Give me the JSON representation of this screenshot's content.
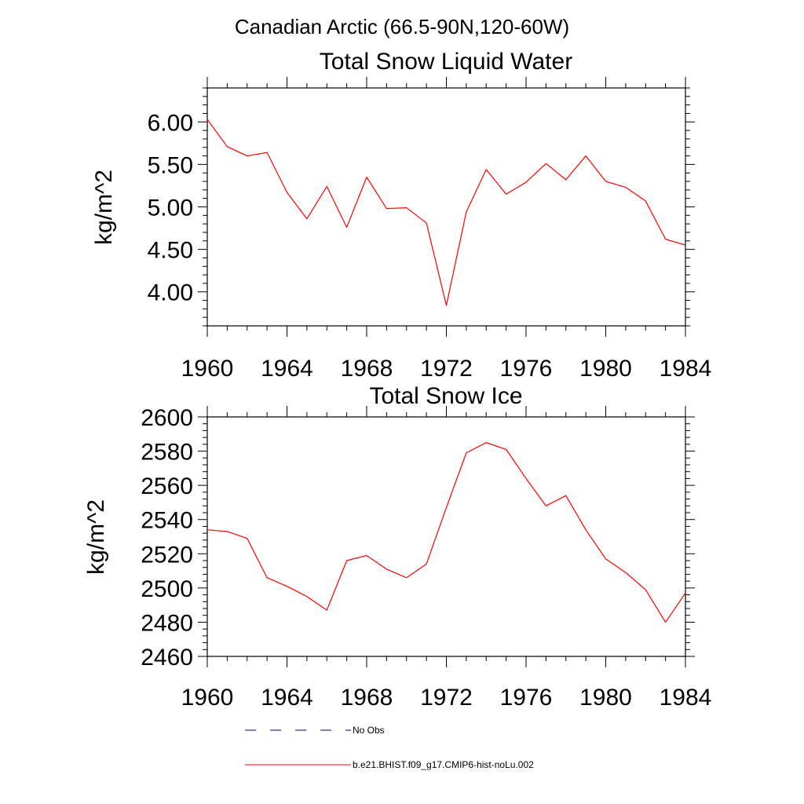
{
  "page_title": "Canadian Arctic (66.5-90N,120-60W)",
  "legend": [
    {
      "label": "No Obs",
      "color": "#000080",
      "style": "dashed"
    },
    {
      "label": "b.e21.BHIST.f09_g17.CMIP6-hist-noLu.002",
      "color": "#ff0000",
      "style": "solid"
    }
  ],
  "chart_data": [
    {
      "type": "line",
      "title": "Total Snow Liquid Water",
      "xlabel": "",
      "ylabel": "kg/m^2",
      "xlim": [
        1960,
        1984
      ],
      "ylim": [
        3.6,
        6.4
      ],
      "xticks": [
        "1960",
        "1964",
        "1968",
        "1972",
        "1976",
        "1980",
        "1984"
      ],
      "yticks": [
        "4.00",
        "4.50",
        "5.00",
        "5.50",
        "6.00"
      ],
      "x": [
        1960,
        1961,
        1962,
        1963,
        1964,
        1965,
        1966,
        1967,
        1968,
        1969,
        1970,
        1971,
        1972,
        1973,
        1974,
        1975,
        1976,
        1977,
        1978,
        1979,
        1980,
        1981,
        1982,
        1983,
        1984
      ],
      "series": [
        {
          "name": "b.e21.BHIST.f09_g17.CMIP6-hist-noLu.002",
          "color": "#ff0000",
          "values": [
            6.03,
            5.71,
            5.6,
            5.64,
            5.17,
            4.86,
            5.24,
            4.76,
            5.35,
            4.98,
            4.99,
            4.81,
            3.84,
            4.94,
            5.44,
            5.15,
            5.29,
            5.51,
            5.32,
            5.6,
            5.3,
            5.23,
            5.07,
            4.62,
            4.55
          ]
        }
      ]
    },
    {
      "type": "line",
      "title": "Total Snow Ice",
      "xlabel": "",
      "ylabel": "kg/m^2",
      "xlim": [
        1960,
        1984
      ],
      "ylim": [
        2460,
        2600
      ],
      "xticks": [
        "1960",
        "1964",
        "1968",
        "1972",
        "1976",
        "1980",
        "1984"
      ],
      "yticks": [
        "2460",
        "2480",
        "2500",
        "2520",
        "2540",
        "2560",
        "2580",
        "2600"
      ],
      "x": [
        1960,
        1961,
        1962,
        1963,
        1964,
        1965,
        1966,
        1967,
        1968,
        1969,
        1970,
        1971,
        1972,
        1973,
        1974,
        1975,
        1976,
        1977,
        1978,
        1979,
        1980,
        1981,
        1982,
        1983,
        1984
      ],
      "series": [
        {
          "name": "b.e21.BHIST.f09_g17.CMIP6-hist-noLu.002",
          "color": "#ff0000",
          "values": [
            2534,
            2533,
            2529,
            2506,
            2501,
            2495,
            2487,
            2516,
            2519,
            2511,
            2506,
            2514,
            2547,
            2579,
            2585,
            2581,
            2564,
            2548,
            2554,
            2534,
            2517,
            2509,
            2499,
            2480,
            2497
          ]
        }
      ]
    }
  ]
}
